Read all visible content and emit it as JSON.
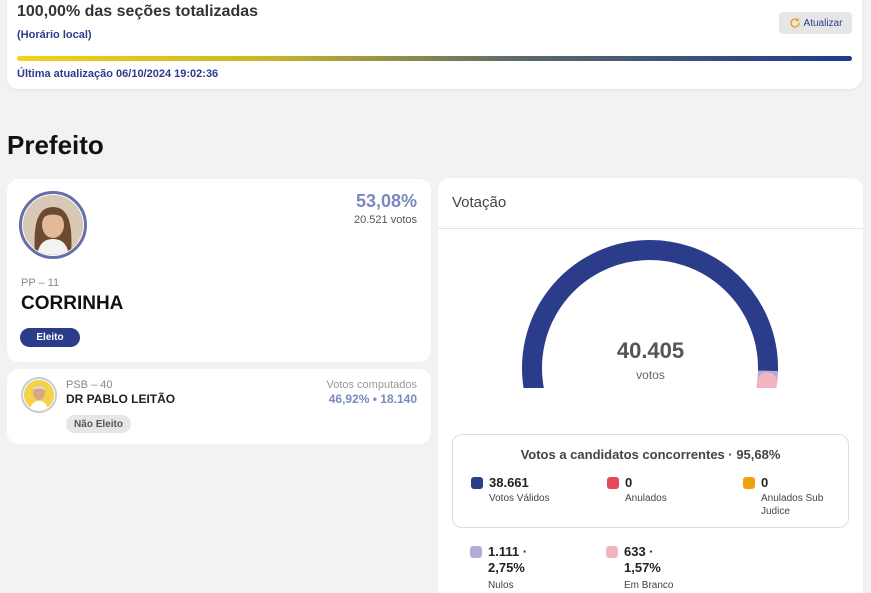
{
  "header": {
    "title": "100,00% das seções totalizadas",
    "subtitle": "(Horário local)",
    "refresh_label": "Atualizar",
    "last_update": "Última atualização 06/10/2024 19:02:36",
    "progress_percent": 100
  },
  "section_title": "Prefeito",
  "candidates": [
    {
      "party": "PP – 11",
      "name": "CORRINHA",
      "percent": "53,08%",
      "votes": "20.521 votos",
      "status": "Eleito"
    },
    {
      "party": "PSB – 40",
      "name": "DR PABLO LEITÃO",
      "computed_label": "Votos computados",
      "percent_votes": "46,92%  •  18.140",
      "status": "Não Eleito"
    }
  ],
  "votacao": {
    "title": "Votação",
    "total": "40.405",
    "total_label": "votos",
    "gauge_fraction_valid": 0.9568,
    "concorrentes": {
      "title": "Votos a candidatos concorrentes · 95,68%",
      "items": [
        {
          "value": "38.661",
          "label": "Votos Válidos",
          "color": "#2b3d8a"
        },
        {
          "value": "0",
          "label": "Anulados",
          "color": "#e6475a"
        },
        {
          "value": "0",
          "label": "Anulados Sub Judice",
          "color": "#f3a20f"
        }
      ]
    },
    "others": [
      {
        "value": "1.111 · 2,75%",
        "label": "Nulos",
        "color": "#b3acd6"
      },
      {
        "value": "633 · 1,57%",
        "label": "Em Branco",
        "color": "#f4b3c0"
      }
    ]
  },
  "colors": {
    "primary": "#2b3d8a",
    "accent_percent": "#7a8abf"
  }
}
